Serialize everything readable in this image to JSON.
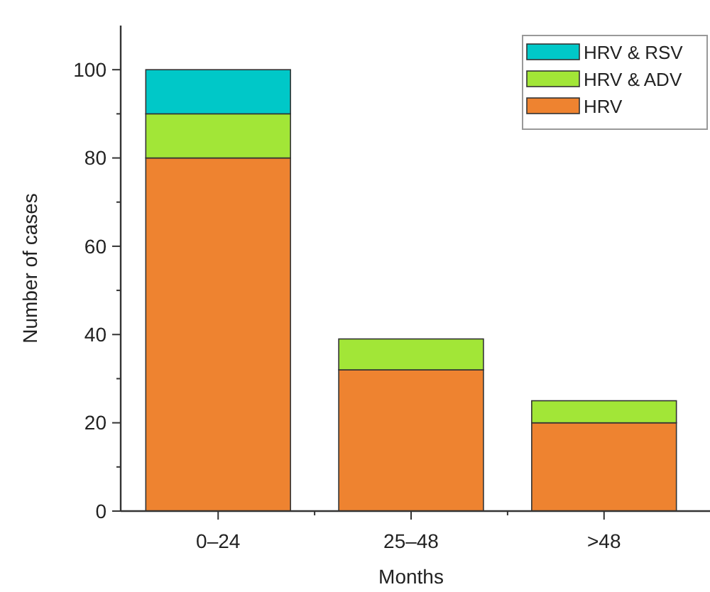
{
  "chart_data": {
    "type": "bar",
    "stacked": true,
    "xlabel": "Months",
    "ylabel": "Number of cases",
    "categories": [
      "0–24",
      "25–48",
      ">48"
    ],
    "series": [
      {
        "name": "HRV",
        "color": "#ee8330",
        "values": [
          80,
          32,
          20
        ]
      },
      {
        "name": "HRV & ADV",
        "color": "#a2e637",
        "values": [
          10,
          7,
          5
        ]
      },
      {
        "name": "HRV & RSV",
        "color": "#00c8c8",
        "values": [
          10,
          0,
          0
        ]
      }
    ],
    "ylim": [
      0,
      110
    ],
    "yticks": [
      0,
      {
        "value": 10,
        "label": null
      },
      20,
      {
        "value": 30,
        "label": null
      },
      40,
      {
        "value": 50,
        "label": null
      },
      60,
      {
        "value": 70,
        "label": null
      },
      80,
      {
        "value": 90,
        "label": null
      },
      100
    ],
    "legend": "top right",
    "grid": false
  }
}
